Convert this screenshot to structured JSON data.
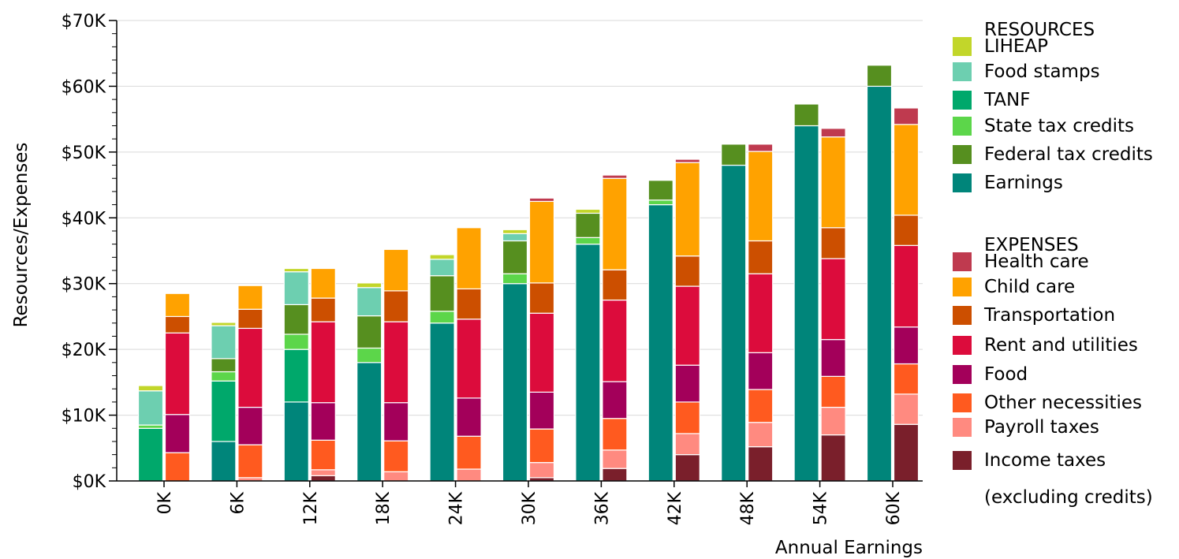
{
  "chart_data": {
    "type": "bar",
    "stacked": true,
    "grouped": true,
    "xlabel": "Annual Earnings",
    "ylabel": "Resources/Expenses",
    "ylim": [
      0,
      70000
    ],
    "y_ticks": [
      {
        "value": 0,
        "label": "$0K"
      },
      {
        "value": 10000,
        "label": "$10K"
      },
      {
        "value": 20000,
        "label": "$20K"
      },
      {
        "value": 30000,
        "label": "$30K"
      },
      {
        "value": 40000,
        "label": "$40K"
      },
      {
        "value": 50000,
        "label": "$50K"
      },
      {
        "value": 60000,
        "label": "$60K"
      },
      {
        "value": 70000,
        "label": "$70K"
      }
    ],
    "grid": "horizontal",
    "legend_position": "right",
    "categories": [
      "0K",
      "6K",
      "12K",
      "18K",
      "24K",
      "30K",
      "36K",
      "42K",
      "48K",
      "54K",
      "60K"
    ],
    "groups": [
      {
        "name": "RESOURCES",
        "series": [
          {
            "name": "Earnings",
            "color": "#00857a",
            "values": [
              0,
              6000,
              12000,
              18000,
              24000,
              30000,
              36000,
              42000,
              48000,
              54000,
              60000
            ]
          },
          {
            "name": "TANF",
            "color": "#00a86b",
            "values": [
              8000,
              9200,
              8000,
              0,
              0,
              0,
              0,
              0,
              0,
              0,
              0
            ]
          },
          {
            "name": "State tax credits",
            "color": "#5cd64a",
            "values": [
              500,
              1400,
              2300,
              2200,
              1800,
              1500,
              1000,
              700,
              0,
              0,
              0
            ]
          },
          {
            "name": "Federal tax credits",
            "color": "#568f1f",
            "values": [
              0,
              2000,
              4500,
              4900,
              5400,
              5000,
              3700,
              3000,
              3200,
              3300,
              3200
            ]
          },
          {
            "name": "Food stamps",
            "color": "#6dcfb0",
            "values": [
              5200,
              5000,
              5000,
              4300,
              2500,
              1100,
              0,
              0,
              0,
              0,
              0
            ]
          },
          {
            "name": "LIHEAP",
            "color": "#c2d62a",
            "values": [
              800,
              500,
              500,
              700,
              700,
              600,
              600,
              0,
              0,
              0,
              0
            ]
          }
        ]
      },
      {
        "name": "EXPENSES",
        "series": [
          {
            "name": "Income taxes (excluding credits)",
            "color": "#7a1f2b",
            "values": [
              0,
              0,
              800,
              0,
              0,
              500,
              1900,
              4000,
              5200,
              7000,
              8600
            ]
          },
          {
            "name": "Payroll taxes",
            "color": "#ff8a80",
            "values": [
              0,
              500,
              900,
              1400,
              1800,
              2300,
              2800,
              3200,
              3700,
              4200,
              4600
            ]
          },
          {
            "name": "Other necessities",
            "color": "#ff5a1f",
            "values": [
              4300,
              5000,
              4500,
              4700,
              5000,
              5100,
              4800,
              4800,
              5000,
              4700,
              4600
            ]
          },
          {
            "name": "Food",
            "color": "#a3005a",
            "values": [
              5800,
              5700,
              5700,
              5800,
              5800,
              5600,
              5600,
              5600,
              5600,
              5600,
              5600
            ]
          },
          {
            "name": "Rent and utilities",
            "color": "#dc0c3c",
            "values": [
              12400,
              12000,
              12300,
              12300,
              12000,
              12000,
              12400,
              12000,
              12000,
              12300,
              12400
            ]
          },
          {
            "name": "Transportation",
            "color": "#cc4f00",
            "values": [
              2500,
              2900,
              3600,
              4700,
              4600,
              4600,
              4600,
              4600,
              5000,
              4700,
              4600
            ]
          },
          {
            "name": "Child care",
            "color": "#ffa200",
            "values": [
              3500,
              3600,
              4500,
              6300,
              9300,
              12400,
              13900,
              14200,
              13600,
              13800,
              13800
            ]
          },
          {
            "name": "Health care",
            "color": "#bf3a4f",
            "values": [
              0,
              0,
              0,
              0,
              0,
              500,
              500,
              500,
              1100,
              1300,
              2500
            ]
          }
        ]
      }
    ]
  },
  "legend": {
    "resources_heading": "RESOURCES",
    "resources_items": [
      {
        "label": "LIHEAP",
        "color": "#c2d62a"
      },
      {
        "label": "Food stamps",
        "color": "#6dcfb0"
      },
      {
        "label": "TANF",
        "color": "#00a86b"
      },
      {
        "label": "State tax credits",
        "color": "#5cd64a"
      },
      {
        "label": "Federal tax credits",
        "color": "#568f1f"
      },
      {
        "label": "Earnings",
        "color": "#00857a"
      }
    ],
    "expenses_heading": "EXPENSES",
    "expenses_items": [
      {
        "label": "Health care",
        "color": "#bf3a4f"
      },
      {
        "label": "Child care",
        "color": "#ffa200"
      },
      {
        "label": "Transportation",
        "color": "#cc4f00"
      },
      {
        "label": "Rent and utilities",
        "color": "#dc0c3c"
      },
      {
        "label": "Food",
        "color": "#a3005a"
      },
      {
        "label": "Other necessities",
        "color": "#ff5a1f"
      },
      {
        "label": "Payroll taxes",
        "color": "#ff8a80"
      },
      {
        "label": "Income taxes",
        "color": "#7a1f2b"
      }
    ],
    "income_taxes_note": "(excluding credits)"
  }
}
